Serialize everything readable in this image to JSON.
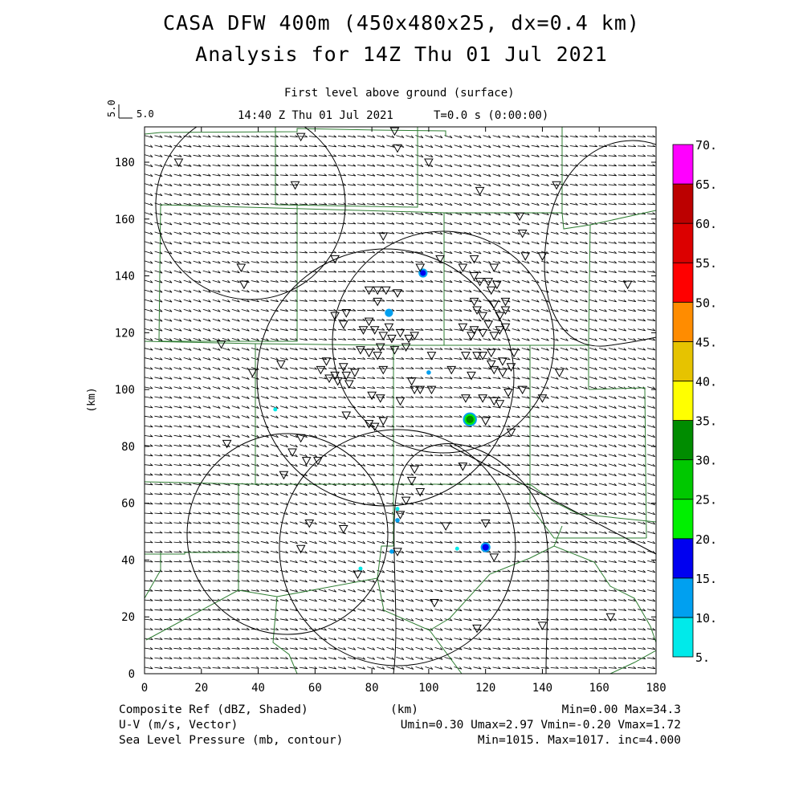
{
  "header": {
    "title_line1": "CASA DFW 400m (450x480x25, dx=0.4 km)",
    "title_line2": "Analysis for 14Z Thu 01 Jul 2021",
    "level": "First level above ground (surface)",
    "time": "14:40 Z Thu 01 Jul 2021",
    "model_time": "T=0.0 s (0:00:00)",
    "vector_scale_v": "5.0",
    "vector_scale_u": "5.0"
  },
  "footer": {
    "field1": "Composite Ref (dBZ, Shaded)",
    "field2": "U-V (m/s, Vector)",
    "field3": "Sea Level Pressure (mb, contour)",
    "stats1": "Min=0.00 Max=34.3",
    "stats2": "Umin=0.30 Umax=2.97 Vmin=-0.20 Vmax=1.72",
    "stats3": "Min=1015. Max=1017. inc=4.000"
  },
  "chart_data": {
    "type": "heatmap",
    "xlabel": "(km)",
    "ylabel": "(km)",
    "xlim": [
      0,
      180
    ],
    "ylim": [
      0,
      192
    ],
    "x_ticks": [
      "0",
      "20",
      "40",
      "60",
      "80",
      "100",
      "120",
      "140",
      "160",
      "180"
    ],
    "y_ticks": [
      "0",
      "20",
      "40",
      "60",
      "80",
      "100",
      "120",
      "140",
      "160",
      "180"
    ],
    "colorbar": {
      "labels": [
        "5.",
        "10.",
        "15.",
        "20.",
        "25.",
        "30.",
        "35.",
        "40.",
        "45.",
        "50.",
        "55.",
        "60.",
        "65.",
        "70."
      ],
      "colors": [
        "#00eaea",
        "#00a0f0",
        "#0000f0",
        "#00f000",
        "#00c800",
        "#008c00",
        "#ffff00",
        "#e6c300",
        "#ff8c00",
        "#ff0000",
        "#dc0000",
        "#bc0000",
        "#ff00ff"
      ]
    },
    "radar_echoes": [
      {
        "x": 98,
        "y": 141,
        "dbz": 15
      },
      {
        "x": 86,
        "y": 127,
        "dbz": 12
      },
      {
        "x": 100,
        "y": 106,
        "dbz": 10
      },
      {
        "x": 114.5,
        "y": 89.5,
        "dbz": 34.3
      },
      {
        "x": 46,
        "y": 93,
        "dbz": 8
      },
      {
        "x": 89,
        "y": 58,
        "dbz": 8
      },
      {
        "x": 89,
        "y": 54,
        "dbz": 10
      },
      {
        "x": 87,
        "y": 43,
        "dbz": 10
      },
      {
        "x": 110,
        "y": 44,
        "dbz": 8
      },
      {
        "x": 120,
        "y": 44.5,
        "dbz": 18
      },
      {
        "x": 76,
        "y": 37,
        "dbz": 8
      }
    ],
    "wind_vector": {
      "u_range": [
        0.3,
        2.97
      ],
      "v_range": [
        -0.2,
        1.72
      ]
    },
    "pressure_contour": {
      "min": 1015,
      "max": 1017,
      "inc": 4.0
    },
    "station_markers": [
      [
        12,
        180
      ],
      [
        55,
        189
      ],
      [
        88,
        191
      ],
      [
        89,
        185
      ],
      [
        100,
        180
      ],
      [
        53,
        172
      ],
      [
        118,
        170
      ],
      [
        132,
        161
      ],
      [
        145,
        172
      ],
      [
        133,
        155
      ],
      [
        84,
        154
      ],
      [
        140,
        147
      ],
      [
        67,
        146
      ],
      [
        34,
        143
      ],
      [
        97,
        143
      ],
      [
        112,
        143
      ],
      [
        134,
        147
      ],
      [
        116,
        146
      ],
      [
        104,
        146
      ],
      [
        123,
        143
      ],
      [
        116,
        140
      ],
      [
        118,
        138
      ],
      [
        121,
        138
      ],
      [
        124,
        137
      ],
      [
        122,
        135
      ],
      [
        116,
        131
      ],
      [
        123,
        130
      ],
      [
        127,
        131
      ],
      [
        35,
        137
      ],
      [
        170,
        137
      ],
      [
        79,
        135
      ],
      [
        82,
        135
      ],
      [
        85,
        135
      ],
      [
        89,
        134
      ],
      [
        127,
        128
      ],
      [
        82,
        131
      ],
      [
        125,
        126
      ],
      [
        117,
        128
      ],
      [
        119,
        126
      ],
      [
        67,
        126
      ],
      [
        71,
        127
      ],
      [
        70,
        123
      ],
      [
        79,
        124
      ],
      [
        81,
        121
      ],
      [
        86,
        122
      ],
      [
        90,
        120
      ],
      [
        95,
        119
      ],
      [
        112,
        122
      ],
      [
        116,
        121
      ],
      [
        119,
        120
      ],
      [
        125,
        121
      ],
      [
        127,
        122
      ],
      [
        77,
        121
      ],
      [
        84,
        119
      ],
      [
        87,
        118
      ],
      [
        93,
        118
      ],
      [
        115,
        119
      ],
      [
        121,
        123
      ],
      [
        123,
        119
      ],
      [
        27,
        116
      ],
      [
        83,
        115
      ],
      [
        92,
        115
      ],
      [
        76,
        114
      ],
      [
        79,
        113
      ],
      [
        82,
        112
      ],
      [
        88,
        114
      ],
      [
        101,
        112
      ],
      [
        113,
        112
      ],
      [
        117,
        112
      ],
      [
        119,
        112
      ],
      [
        122,
        113
      ],
      [
        126,
        110
      ],
      [
        130,
        113
      ],
      [
        129,
        108
      ],
      [
        122,
        109
      ],
      [
        123,
        107
      ],
      [
        126,
        106
      ],
      [
        48,
        109
      ],
      [
        64,
        110
      ],
      [
        70,
        108
      ],
      [
        74,
        106
      ],
      [
        62,
        107
      ],
      [
        71,
        105
      ],
      [
        65,
        104
      ],
      [
        68,
        103
      ],
      [
        67,
        105
      ],
      [
        72,
        102
      ],
      [
        84,
        107
      ],
      [
        108,
        107
      ],
      [
        38,
        106
      ],
      [
        146,
        106
      ],
      [
        115,
        105
      ],
      [
        94,
        103
      ],
      [
        95,
        100
      ],
      [
        97,
        100
      ],
      [
        101,
        100
      ],
      [
        128,
        99
      ],
      [
        133,
        100
      ],
      [
        140,
        97
      ],
      [
        80,
        98
      ],
      [
        83,
        97
      ],
      [
        90,
        96
      ],
      [
        113,
        97
      ],
      [
        119,
        97
      ],
      [
        123,
        96
      ],
      [
        125,
        95
      ],
      [
        71,
        91
      ],
      [
        79,
        88
      ],
      [
        81,
        87
      ],
      [
        84,
        89
      ],
      [
        120,
        89
      ],
      [
        129,
        85
      ],
      [
        55,
        83
      ],
      [
        52,
        78
      ],
      [
        29,
        81
      ],
      [
        57,
        75
      ],
      [
        61,
        75
      ],
      [
        112,
        73
      ],
      [
        95,
        72
      ],
      [
        94,
        68
      ],
      [
        49,
        70
      ],
      [
        97,
        64
      ],
      [
        92,
        61
      ],
      [
        90,
        56
      ],
      [
        58,
        53
      ],
      [
        106,
        52
      ],
      [
        70,
        51
      ],
      [
        120,
        53
      ],
      [
        55,
        44
      ],
      [
        89,
        43
      ],
      [
        123,
        41
      ],
      [
        75,
        35
      ],
      [
        102,
        25
      ],
      [
        164,
        20
      ],
      [
        117,
        16
      ],
      [
        140,
        17
      ]
    ]
  }
}
